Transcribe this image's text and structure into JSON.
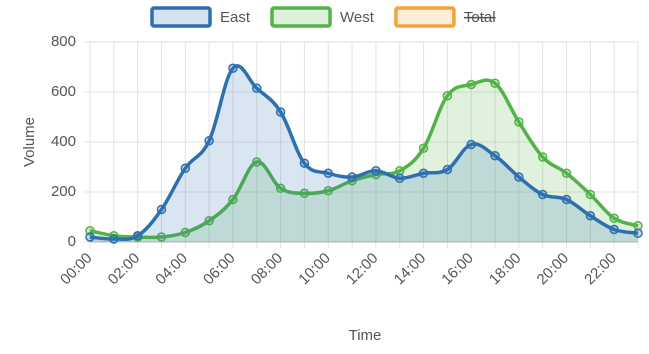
{
  "chart_data": {
    "type": "line",
    "area": true,
    "grid": true,
    "x_label": "Time",
    "y_label": "Volume",
    "categories": [
      "00:00",
      null,
      "02:00",
      null,
      "04:00",
      null,
      "06:00",
      null,
      "08:00",
      null,
      "10:00",
      null,
      "12:00",
      null,
      "14:00",
      null,
      "16:00",
      null,
      "18:00",
      null,
      "20:00",
      null,
      "22:00",
      null
    ],
    "ylim": [
      0,
      800
    ],
    "yticks": [
      0,
      200,
      400,
      600,
      800
    ],
    "series": [
      {
        "name": "East",
        "color": "#2e6fb0",
        "values": [
          20,
          12,
          25,
          130,
          295,
          405,
          695,
          615,
          520,
          315,
          275,
          260,
          285,
          255,
          275,
          290,
          390,
          345,
          260,
          190,
          170,
          105,
          50,
          35
        ]
      },
      {
        "name": "West",
        "color": "#52b447",
        "values": [
          45,
          25,
          20,
          20,
          38,
          85,
          170,
          320,
          215,
          195,
          205,
          245,
          270,
          285,
          375,
          585,
          630,
          635,
          480,
          340,
          275,
          190,
          95,
          65
        ]
      },
      {
        "name": "Total",
        "color": "#f2a33a",
        "hidden": true,
        "values": [
          null,
          null,
          null,
          null,
          null,
          null,
          null,
          null,
          null,
          null,
          null,
          null,
          null,
          null,
          null,
          null,
          null,
          null,
          null,
          null,
          null,
          null,
          null,
          null
        ]
      }
    ]
  }
}
